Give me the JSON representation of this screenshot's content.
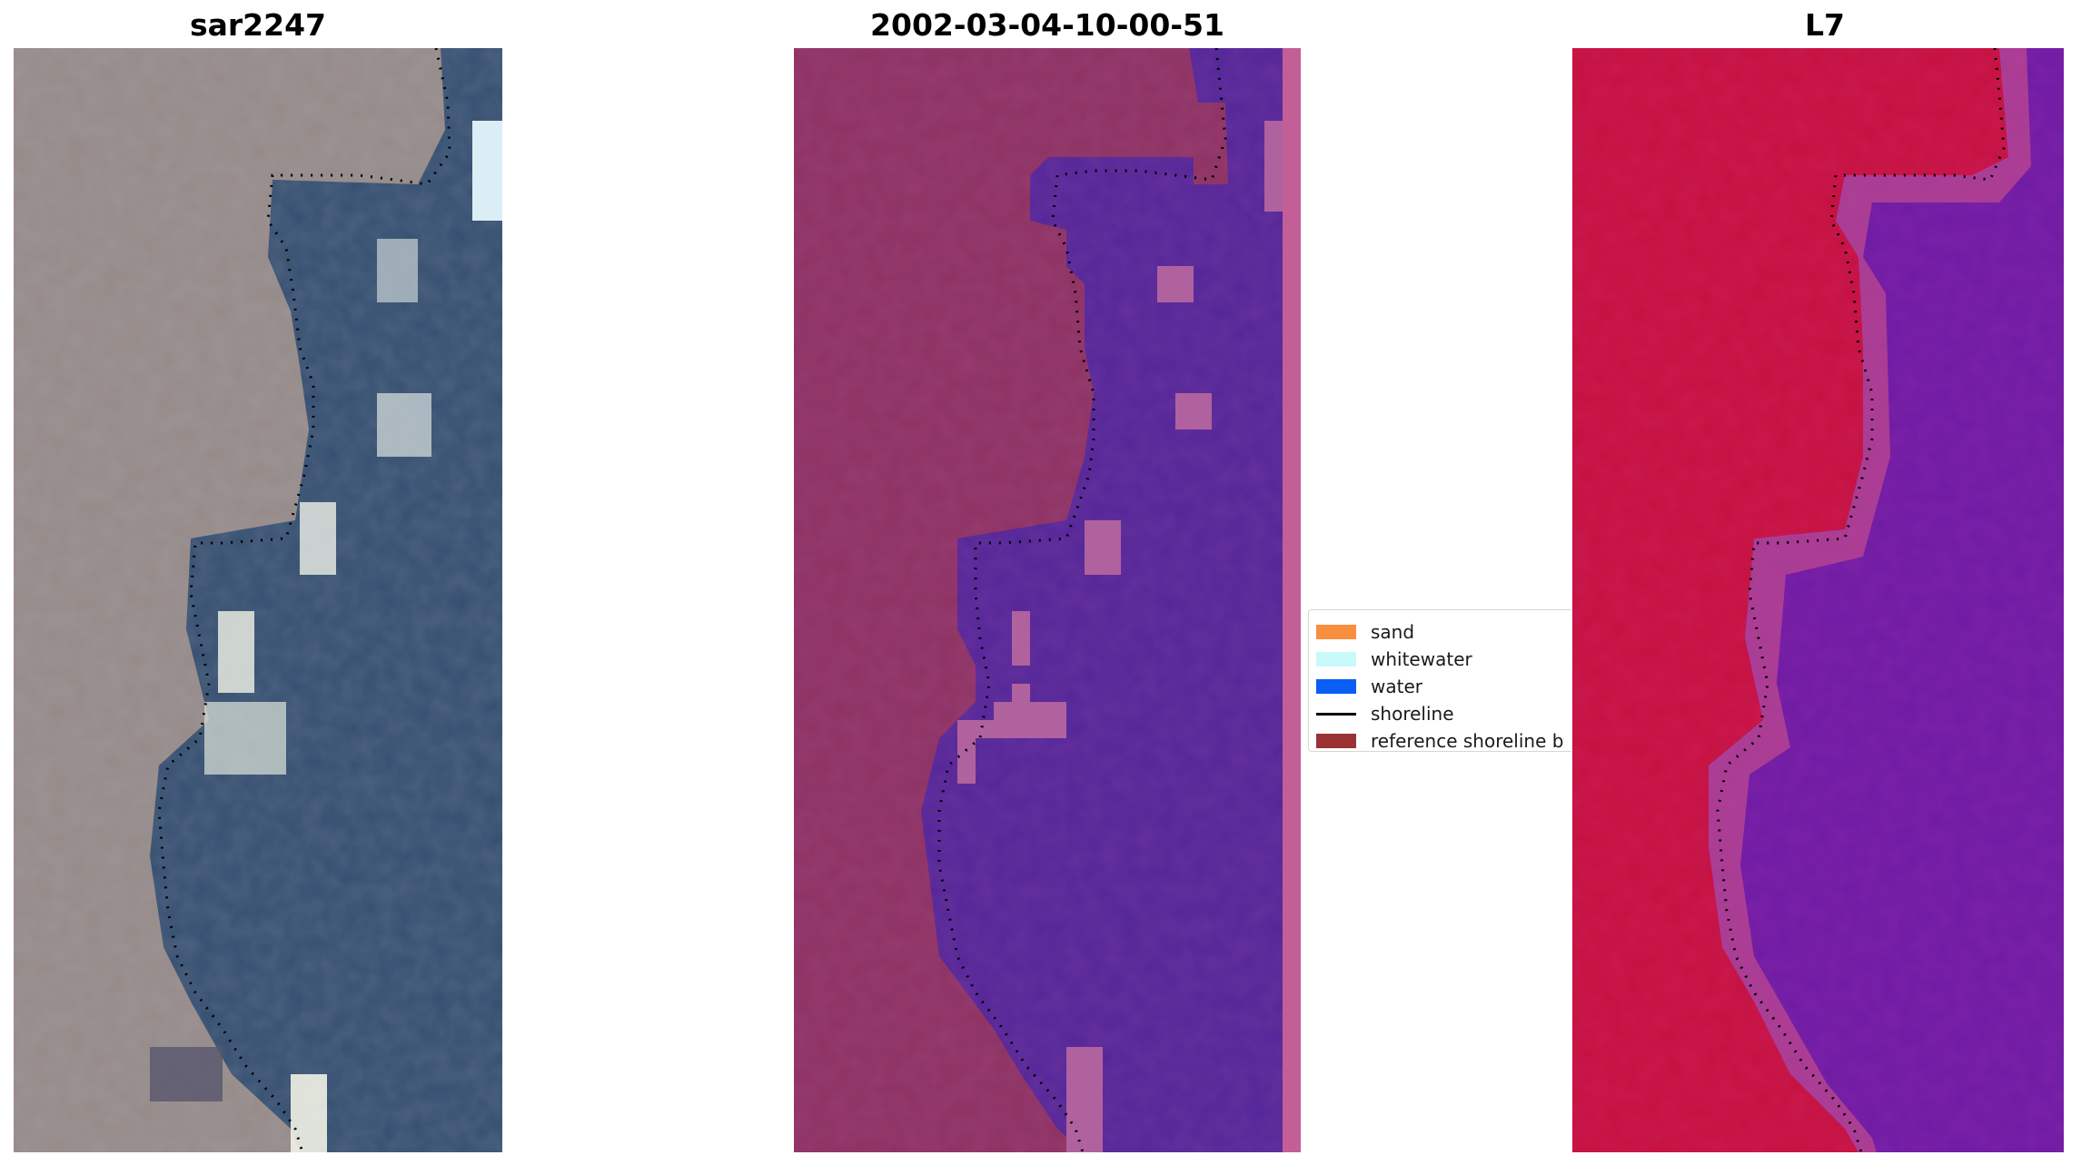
{
  "panels": [
    {
      "title": "sar2247"
    },
    {
      "title": "2002-03-04-10-00-51"
    },
    {
      "title": "L7"
    }
  ],
  "legend": {
    "items": [
      {
        "label": "sand",
        "color": "#f98e3f",
        "kind": "patch"
      },
      {
        "label": "whitewater",
        "color": "#c8fafa",
        "kind": "patch"
      },
      {
        "label": "water",
        "color": "#0a5df5",
        "kind": "patch"
      },
      {
        "label": "shoreline",
        "color": "#000000",
        "kind": "line"
      },
      {
        "label": "reference shoreline b",
        "color": "#9a3234",
        "kind": "patch"
      }
    ]
  },
  "colors": {
    "rgb_land": "#958a88",
    "rgb_water": "#344e70",
    "class_land": "#8c3162",
    "class_water": "#522598",
    "class_edge": "#c45e97",
    "mndwi_land": "#c5103f",
    "mndwi_water": "#6d1aa4"
  }
}
